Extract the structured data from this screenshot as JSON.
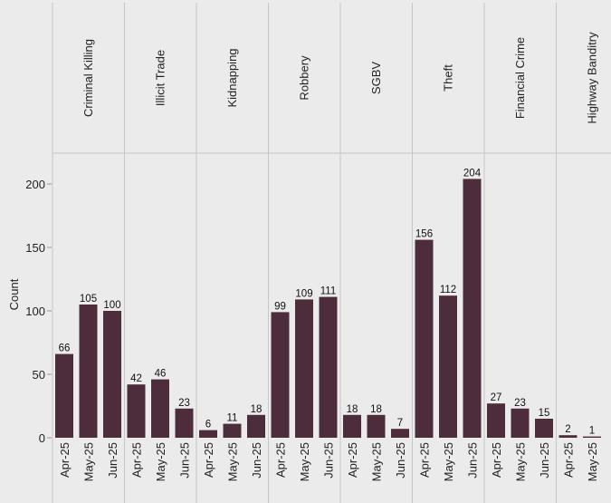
{
  "chart_data": {
    "type": "bar",
    "ylabel": "Count",
    "xlabel": "",
    "ylim": [
      0,
      225
    ],
    "yticks": [
      "0",
      "50",
      "100",
      "150",
      "200"
    ],
    "bar_color": "#4d2d3b",
    "grid": false,
    "panels": [
      {
        "name": "Criminal Killing",
        "categories": [
          "Apr-25",
          "May-25",
          "Jun-25"
        ],
        "values": [
          66,
          105,
          100
        ]
      },
      {
        "name": "Illicit Trade",
        "categories": [
          "Apr-25",
          "May-25",
          "Jun-25"
        ],
        "values": [
          42,
          46,
          23
        ]
      },
      {
        "name": "Kidnapping",
        "categories": [
          "Apr-25",
          "May-25",
          "Jun-25"
        ],
        "values": [
          6,
          11,
          18
        ]
      },
      {
        "name": "Robbery",
        "categories": [
          "Apr-25",
          "May-25",
          "Jun-25"
        ],
        "values": [
          99,
          109,
          111
        ]
      },
      {
        "name": "SGBV",
        "categories": [
          "Apr-25",
          "May-25",
          "Jun-25"
        ],
        "values": [
          18,
          18,
          7
        ]
      },
      {
        "name": "Theft",
        "categories": [
          "Apr-25",
          "May-25",
          "Jun-25"
        ],
        "values": [
          156,
          112,
          204
        ]
      },
      {
        "name": "Financial Crime",
        "categories": [
          "Apr-25",
          "May-25",
          "Jun-25"
        ],
        "values": [
          27,
          23,
          15
        ]
      },
      {
        "name": "Highway Banditry",
        "categories": [
          "Apr-25",
          "May-25"
        ],
        "values": [
          2,
          1
        ]
      }
    ]
  }
}
